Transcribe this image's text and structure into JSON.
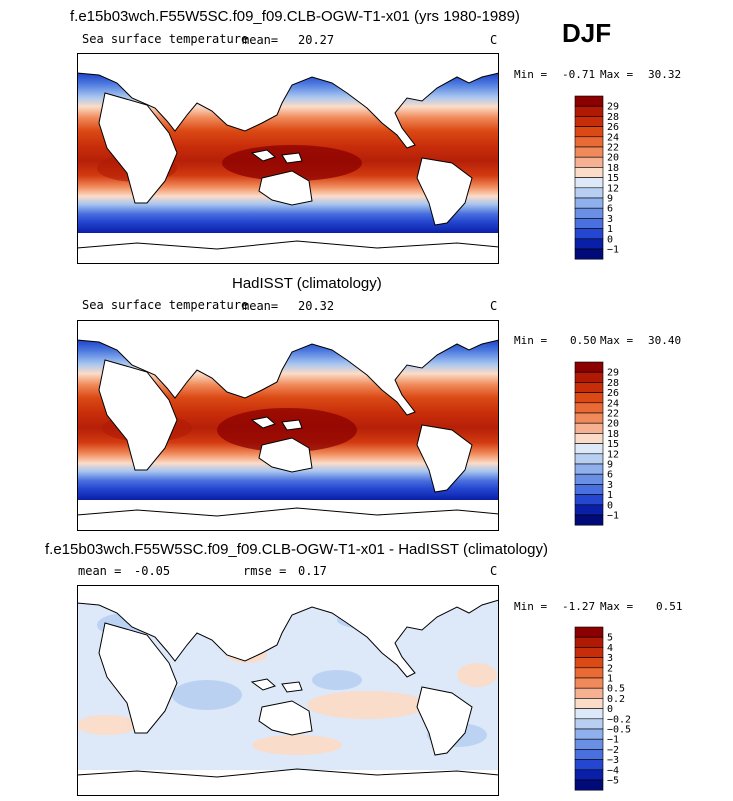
{
  "season": "DJF",
  "units": "C",
  "panel1": {
    "title": "f.e15b03wch.F55W5SC.f09_f09.CLB-OGW-T1-x01 (yrs 1980-1989)",
    "field": "Sea surface temperature",
    "mean_label": "mean=",
    "mean": "20.27",
    "min_label": "Min =",
    "min": "-0.71",
    "max_label": "Max =",
    "max": "30.32"
  },
  "panel2": {
    "title": "HadISST (climatology)",
    "field": "Sea surface temperature",
    "mean_label": "mean=",
    "mean": "20.32",
    "min_label": "Min =",
    "min": "0.50",
    "max_label": "Max =",
    "max": "30.40"
  },
  "panel3": {
    "title": "f.e15b03wch.F55W5SC.f09_f09.CLB-OGW-T1-x01 - HadISST (climatology)",
    "mean_label": "mean =",
    "mean": "-0.05",
    "rmse_label": "rmse =",
    "rmse": "0.17",
    "min_label": "Min =",
    "min": "-1.27",
    "max_label": "Max =",
    "max": "0.51"
  },
  "colorbar_sst": {
    "labels": [
      "29",
      "28",
      "26",
      "24",
      "22",
      "20",
      "18",
      "15",
      "12",
      "9",
      "6",
      "3",
      "1",
      "0",
      "−1"
    ],
    "colors": [
      "#8b0000",
      "#b01a05",
      "#c82d0a",
      "#db4a15",
      "#ea6a35",
      "#f08a5a",
      "#f6b092",
      "#fbdcc8",
      "#dde8f8",
      "#b8cff2",
      "#8fb0ec",
      "#6990e4",
      "#4a6fde",
      "#2446d0",
      "#0a1fa8",
      "#000a78"
    ]
  },
  "colorbar_diff": {
    "labels": [
      "5",
      "4",
      "3",
      "2",
      "1",
      "0.5",
      "0.2",
      "0",
      "−0.2",
      "−0.5",
      "−1",
      "−2",
      "−3",
      "−4",
      "−5"
    ],
    "colors": [
      "#8b0000",
      "#b01a05",
      "#c82d0a",
      "#db4a15",
      "#ea6a35",
      "#f08a5a",
      "#f6b092",
      "#fbdcc8",
      "#dde8f8",
      "#b8cff2",
      "#8fb0ec",
      "#6990e4",
      "#4a6fde",
      "#2446d0",
      "#0a1fa8",
      "#000a78"
    ]
  }
}
